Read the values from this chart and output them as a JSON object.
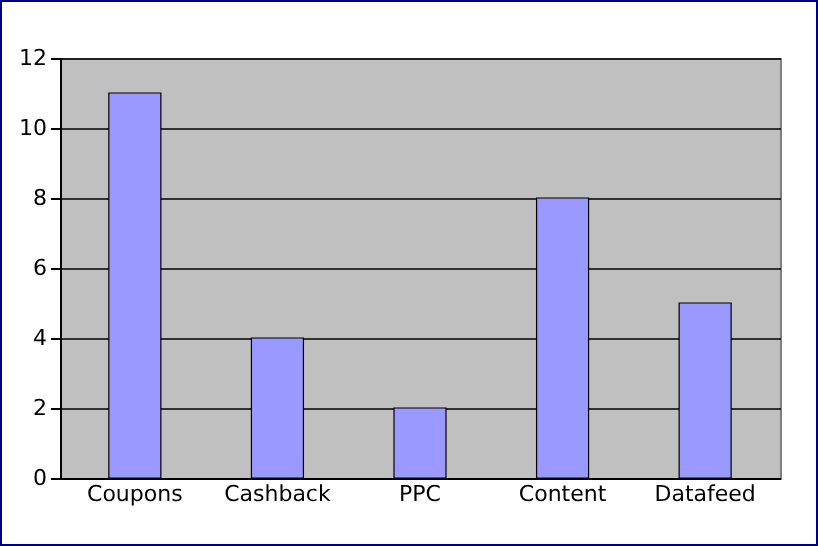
{
  "chart_data": {
    "type": "bar",
    "categories": [
      "Coupons",
      "Cashback",
      "PPC",
      "Content",
      "Datafeed"
    ],
    "values": [
      11,
      4,
      2,
      8,
      5
    ],
    "color": "#9999ff",
    "ylim": [
      0,
      12
    ],
    "yticks": [
      0,
      2,
      4,
      6,
      8,
      10,
      12
    ],
    "grid": "y"
  }
}
